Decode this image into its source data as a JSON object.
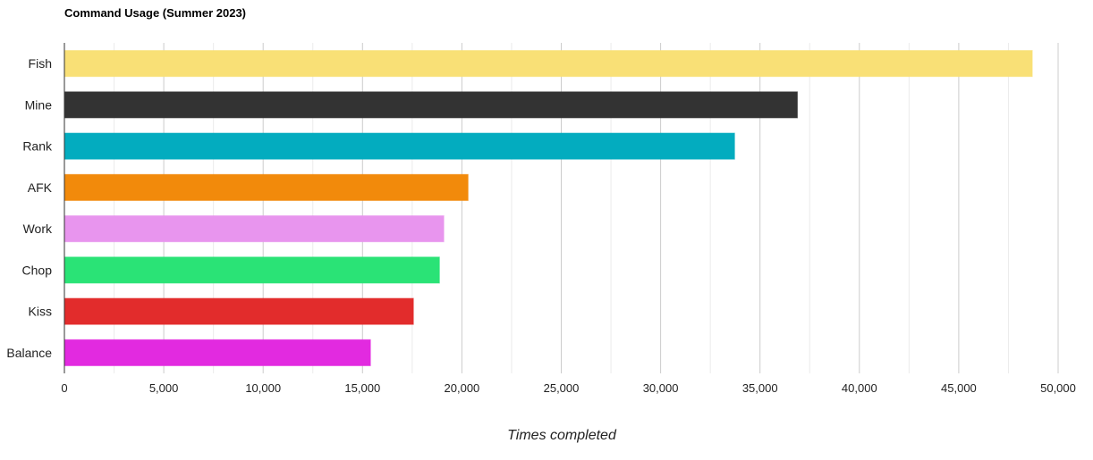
{
  "chart_data": {
    "type": "bar",
    "orientation": "horizontal",
    "title": "Command Usage (Summer 2023)",
    "xlabel": "Times completed",
    "ylabel": "",
    "categories": [
      "Fish",
      "Mine",
      "Rank",
      "AFK",
      "Work",
      "Chop",
      "Kiss",
      "Balance"
    ],
    "values": [
      48700,
      36880,
      33720,
      20310,
      19090,
      18870,
      17560,
      15400
    ],
    "colors": [
      "#f9e076",
      "#333333",
      "#03acbf",
      "#f28a0b",
      "#e895ee",
      "#2ae376",
      "#e22c2c",
      "#e22ae0"
    ],
    "xlim": [
      0,
      50000
    ],
    "xticks": [
      0,
      5000,
      10000,
      15000,
      20000,
      25000,
      30000,
      35000,
      40000,
      45000,
      50000
    ],
    "xtick_labels": [
      "0",
      "5,000",
      "10,000",
      "15,000",
      "20,000",
      "25,000",
      "30,000",
      "35,000",
      "40,000",
      "45,000",
      "50,000"
    ],
    "grid": true,
    "legend": "none"
  }
}
